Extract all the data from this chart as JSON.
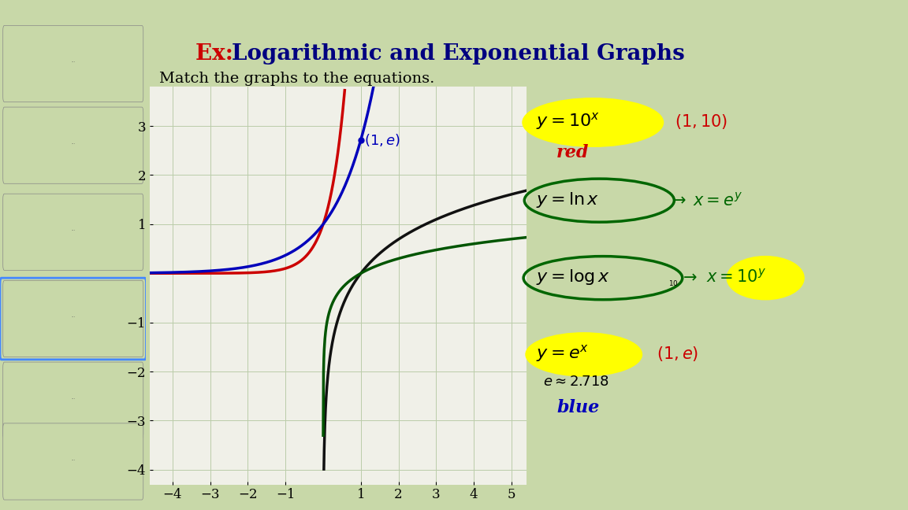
{
  "title_ex": "Ex: ",
  "title_main": "Logarithmic and Exponential Graphs",
  "subtitle": "Match the graphs to the equations.",
  "bg_color": "#c8d8a8",
  "graph_bg": "#f0f0e8",
  "sidebar_color": "#111111",
  "xlim": [
    -4.6,
    5.4
  ],
  "ylim": [
    -4.3,
    3.8
  ],
  "xticks": [
    -4,
    -3,
    -2,
    -1,
    1,
    2,
    3,
    4,
    5
  ],
  "yticks": [
    -4,
    -3,
    -2,
    -1,
    1,
    2,
    3
  ],
  "grid_color": "#bbccaa",
  "curve_red": "#cc0000",
  "curve_blue": "#0000bb",
  "curve_black": "#111111",
  "curve_green": "#005500",
  "annotation_color_blue": "#0000bb",
  "yellow": "#ffff00",
  "dark_green": "#006600",
  "red_text": "#cc0000",
  "navy": "#000080"
}
